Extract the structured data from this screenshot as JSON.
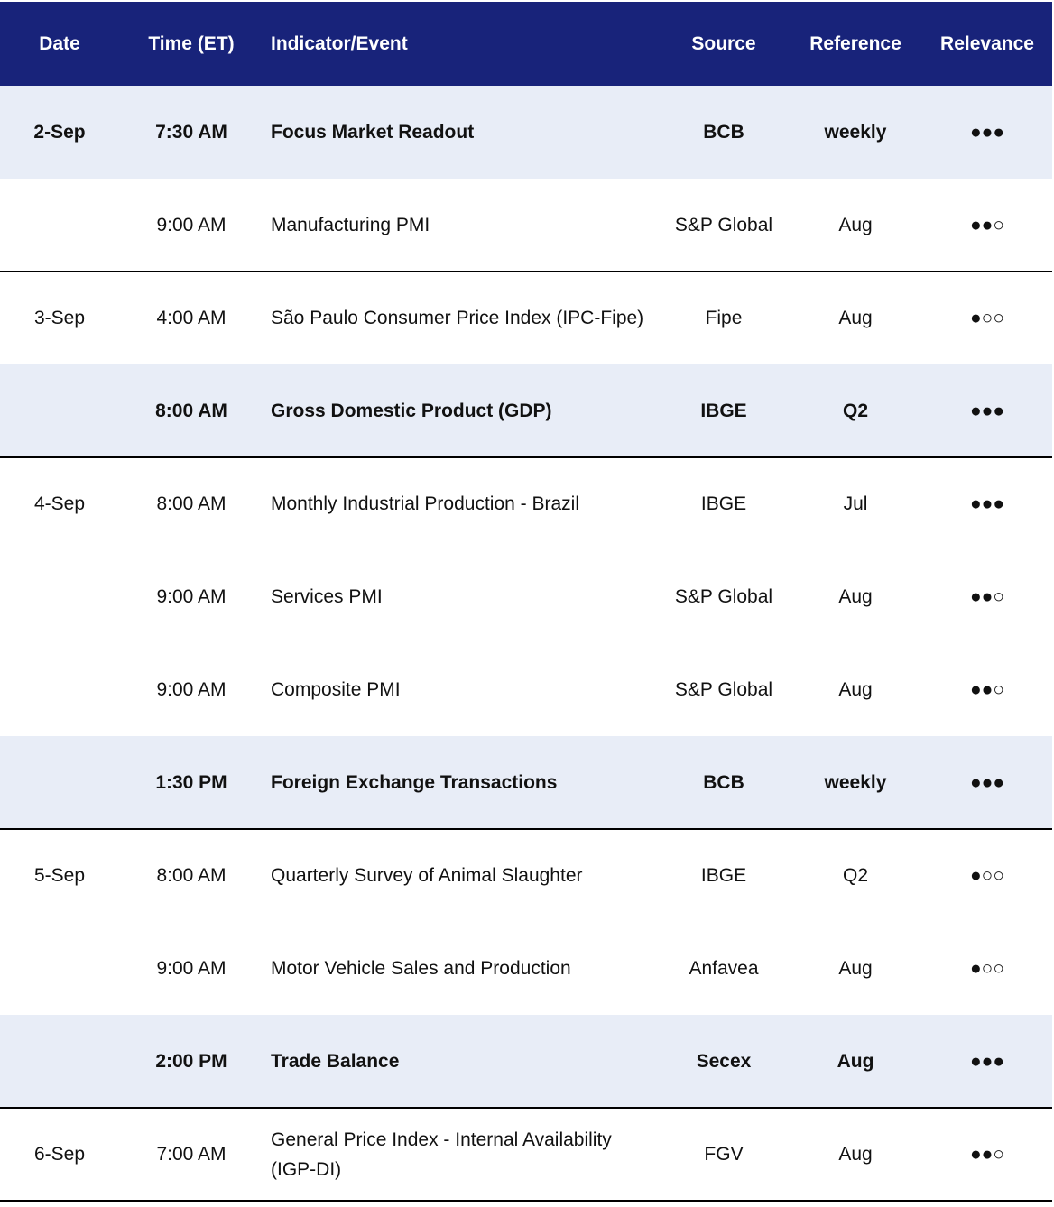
{
  "table": {
    "header": [
      "Date",
      "Time (ET)",
      "Indicator/Event",
      "Source",
      "Reference",
      "Relevance"
    ],
    "groups": [
      {
        "date": "2-Sep",
        "rows": [
          {
            "time": "7:30 AM",
            "event": "Focus Market Readout",
            "source": "BCB",
            "reference": "weekly",
            "relevance": "●●●",
            "highlight": true
          },
          {
            "time": "9:00 AM",
            "event": "Manufacturing PMI",
            "source": "S&P Global",
            "reference": "Aug",
            "relevance": "●●○",
            "highlight": false
          }
        ]
      },
      {
        "date": "3-Sep",
        "rows": [
          {
            "time": "4:00 AM",
            "event": "São Paulo Consumer Price Index (IPC-Fipe)",
            "source": "Fipe",
            "reference": "Aug",
            "relevance": "●○○",
            "highlight": false
          },
          {
            "time": "8:00 AM",
            "event": "Gross Domestic Product (GDP)",
            "source": "IBGE",
            "reference": "Q2",
            "relevance": "●●●",
            "highlight": true
          }
        ]
      },
      {
        "date": "4-Sep",
        "rows": [
          {
            "time": "8:00 AM",
            "event": "Monthly Industrial Production - Brazil",
            "source": "IBGE",
            "reference": "Jul",
            "relevance": "●●●",
            "highlight": false
          },
          {
            "time": "9:00 AM",
            "event": "Services PMI",
            "source": "S&P Global",
            "reference": "Aug",
            "relevance": "●●○",
            "highlight": false
          },
          {
            "time": "9:00 AM",
            "event": "Composite PMI",
            "source": "S&P Global",
            "reference": "Aug",
            "relevance": "●●○",
            "highlight": false
          },
          {
            "time": "1:30 PM",
            "event": "Foreign Exchange Transactions",
            "source": "BCB",
            "reference": "weekly",
            "relevance": "●●●",
            "highlight": true
          }
        ]
      },
      {
        "date": "5-Sep",
        "rows": [
          {
            "time": "8:00 AM",
            "event": "Quarterly Survey of Animal Slaughter",
            "source": "IBGE",
            "reference": "Q2",
            "relevance": "●○○",
            "highlight": false
          },
          {
            "time": "9:00 AM",
            "event": "Motor Vehicle Sales and Production",
            "source": "Anfavea",
            "reference": "Aug",
            "relevance": "●○○",
            "highlight": false
          },
          {
            "time": "2:00 PM",
            "event": "Trade Balance",
            "source": "Secex",
            "reference": "Aug",
            "relevance": "●●●",
            "highlight": true
          }
        ]
      },
      {
        "date": "6-Sep",
        "rows": [
          {
            "time": "7:00 AM",
            "event": "General Price Index - Internal Availability (IGP-DI)",
            "source": "FGV",
            "reference": "Aug",
            "relevance": "●●○",
            "highlight": false
          }
        ]
      }
    ]
  }
}
